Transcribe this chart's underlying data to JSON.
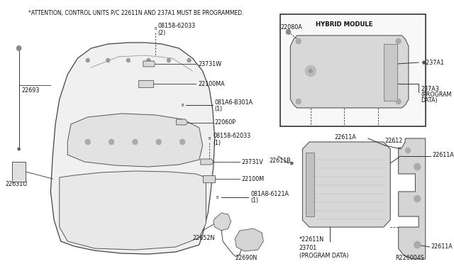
{
  "background_color": "#ffffff",
  "attention_text": "*ATTENTION, CONTROL UNITS P/C 22611N AND 237A1 MUST BE PROGRAMMED.",
  "hybrid_module_label": "HYBRID MODULE",
  "diagram_ref": "R226004S",
  "line_color": "#333333",
  "text_color": "#111111",
  "font_size_labels": 5.8,
  "font_size_attention": 5.5,
  "font_size_ref": 5.8,
  "font_size_hybrid": 6.2
}
